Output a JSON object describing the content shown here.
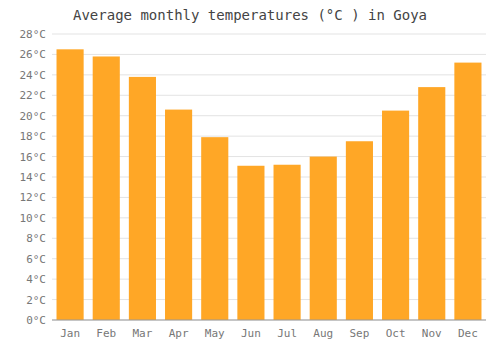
{
  "chart_data": {
    "type": "bar",
    "title": "Average monthly temperatures (°C ) in Goya",
    "categories": [
      "Jan",
      "Feb",
      "Mar",
      "Apr",
      "May",
      "Jun",
      "Jul",
      "Aug",
      "Sep",
      "Oct",
      "Nov",
      "Dec"
    ],
    "values": [
      26.5,
      25.8,
      23.8,
      20.6,
      17.9,
      15.1,
      15.2,
      16.0,
      17.5,
      20.5,
      22.8,
      25.2
    ],
    "color": "#FFA726",
    "ylim": [
      0,
      28
    ],
    "yticks": [
      {
        "value": 0,
        "label": "0°C"
      },
      {
        "value": 2,
        "label": "2°C"
      },
      {
        "value": 4,
        "label": "4°C"
      },
      {
        "value": 6,
        "label": "6°C"
      },
      {
        "value": 8,
        "label": "8°C"
      },
      {
        "value": 10,
        "label": "10°C"
      },
      {
        "value": 12,
        "label": "12°C"
      },
      {
        "value": 14,
        "label": "14°C"
      },
      {
        "value": 16,
        "label": "16°C"
      },
      {
        "value": 18,
        "label": "18°C"
      },
      {
        "value": 20,
        "label": "20°C"
      },
      {
        "value": 22,
        "label": "22°C"
      },
      {
        "value": 24,
        "label": "24°C"
      },
      {
        "value": 26,
        "label": "26°C"
      },
      {
        "value": 28,
        "label": "28°C"
      }
    ],
    "grid": true
  }
}
